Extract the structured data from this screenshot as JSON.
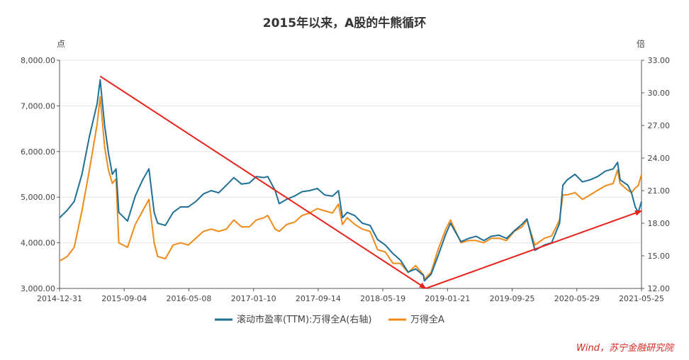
{
  "chart_data": {
    "type": "line",
    "title": "2015年以来，A股的牛熊循环",
    "y_left_unit": "点",
    "y_right_unit": "倍",
    "x_tick_labels": [
      "2014-12-31",
      "2015-09-04",
      "2016-05-08",
      "2017-01-10",
      "2017-09-14",
      "2018-05-19",
      "2019-01-21",
      "2019-09-25",
      "2020-05-29",
      "2021-05-25"
    ],
    "y_left_ticks": [
      "3,000.00",
      "4,000.00",
      "5,000.00",
      "6,000.00",
      "7,000.00",
      "8,000.00"
    ],
    "y_right_ticks": [
      "12.00",
      "15.00",
      "18.00",
      "21.00",
      "24.00",
      "27.00",
      "30.00",
      "33.00"
    ],
    "y_left_range": [
      3000,
      8000
    ],
    "y_right_range": [
      12,
      33
    ],
    "x_range": [
      "2014-12-31",
      "2021-05-25"
    ],
    "series": [
      {
        "name": "滚动市盈率(TTM):万得全A(右轴)",
        "axis": "right",
        "color": "#1f6f96",
        "points": [
          [
            "2014-12-31",
            18.5
          ],
          [
            "2015-01-31",
            19.2
          ],
          [
            "2015-02-28",
            20.0
          ],
          [
            "2015-03-31",
            22.5
          ],
          [
            "2015-04-30",
            26.0
          ],
          [
            "2015-05-31",
            29.0
          ],
          [
            "2015-06-12",
            31.2
          ],
          [
            "2015-06-30",
            27.0
          ],
          [
            "2015-07-15",
            24.5
          ],
          [
            "2015-07-31",
            22.5
          ],
          [
            "2015-08-15",
            23.0
          ],
          [
            "2015-08-26",
            19.0
          ],
          [
            "2015-09-30",
            18.2
          ],
          [
            "2015-10-31",
            20.5
          ],
          [
            "2015-11-30",
            22.0
          ],
          [
            "2015-12-25",
            23.0
          ],
          [
            "2016-01-15",
            19.0
          ],
          [
            "2016-01-29",
            18.0
          ],
          [
            "2016-02-29",
            17.8
          ],
          [
            "2016-03-31",
            19.0
          ],
          [
            "2016-04-30",
            19.5
          ],
          [
            "2016-05-31",
            19.5
          ],
          [
            "2016-06-30",
            20.0
          ],
          [
            "2016-07-31",
            20.7
          ],
          [
            "2016-08-31",
            21.0
          ],
          [
            "2016-09-30",
            20.8
          ],
          [
            "2016-10-31",
            21.5
          ],
          [
            "2016-11-30",
            22.2
          ],
          [
            "2016-12-31",
            21.6
          ],
          [
            "2017-01-31",
            21.7
          ],
          [
            "2017-02-28",
            22.3
          ],
          [
            "2017-03-31",
            22.2
          ],
          [
            "2017-04-15",
            22.3
          ],
          [
            "2017-05-15",
            21.0
          ],
          [
            "2017-05-31",
            19.8
          ],
          [
            "2017-06-30",
            20.2
          ],
          [
            "2017-07-31",
            20.5
          ],
          [
            "2017-08-31",
            20.9
          ],
          [
            "2017-09-30",
            21.0
          ],
          [
            "2017-10-31",
            21.2
          ],
          [
            "2017-11-30",
            20.6
          ],
          [
            "2017-12-31",
            20.5
          ],
          [
            "2018-01-24",
            21.0
          ],
          [
            "2018-02-09",
            18.5
          ],
          [
            "2018-02-28",
            19.0
          ],
          [
            "2018-03-31",
            18.7
          ],
          [
            "2018-04-30",
            18.0
          ],
          [
            "2018-05-31",
            17.8
          ],
          [
            "2018-06-30",
            16.5
          ],
          [
            "2018-07-31",
            16.0
          ],
          [
            "2018-08-31",
            15.2
          ],
          [
            "2018-09-30",
            14.6
          ],
          [
            "2018-10-31",
            13.5
          ],
          [
            "2018-11-30",
            13.8
          ],
          [
            "2018-12-31",
            13.2
          ],
          [
            "2019-01-04",
            12.7
          ],
          [
            "2019-01-31",
            13.3
          ],
          [
            "2019-02-28",
            15.0
          ],
          [
            "2019-03-31",
            17.0
          ],
          [
            "2019-04-19",
            18.0
          ],
          [
            "2019-05-31",
            16.3
          ],
          [
            "2019-06-30",
            16.6
          ],
          [
            "2019-07-31",
            16.8
          ],
          [
            "2019-08-31",
            16.4
          ],
          [
            "2019-09-30",
            16.8
          ],
          [
            "2019-10-31",
            16.9
          ],
          [
            "2019-11-30",
            16.6
          ],
          [
            "2019-12-31",
            17.3
          ],
          [
            "2020-01-31",
            17.9
          ],
          [
            "2020-02-20",
            18.4
          ],
          [
            "2020-03-23",
            15.5
          ],
          [
            "2020-04-30",
            16.0
          ],
          [
            "2020-05-29",
            16.2
          ],
          [
            "2020-06-30",
            18.0
          ],
          [
            "2020-07-13",
            21.5
          ],
          [
            "2020-07-31",
            22.0
          ],
          [
            "2020-08-31",
            22.5
          ],
          [
            "2020-09-30",
            21.8
          ],
          [
            "2020-10-31",
            22.0
          ],
          [
            "2020-11-30",
            22.3
          ],
          [
            "2020-12-31",
            22.8
          ],
          [
            "2021-01-31",
            23.0
          ],
          [
            "2021-02-18",
            23.6
          ],
          [
            "2021-02-28",
            22.0
          ],
          [
            "2021-03-31",
            21.5
          ],
          [
            "2021-04-15",
            20.8
          ],
          [
            "2021-04-30",
            19.5
          ],
          [
            "2021-05-12",
            19.0
          ],
          [
            "2021-05-25",
            20.0
          ]
        ]
      },
      {
        "name": "万得全A",
        "axis": "left",
        "color": "#f08a18",
        "points": [
          [
            "2014-12-31",
            3600
          ],
          [
            "2015-01-31",
            3700
          ],
          [
            "2015-02-28",
            3900
          ],
          [
            "2015-03-31",
            4700
          ],
          [
            "2015-04-30",
            5600
          ],
          [
            "2015-05-31",
            6600
          ],
          [
            "2015-06-12",
            7200
          ],
          [
            "2015-06-30",
            6100
          ],
          [
            "2015-07-15",
            5600
          ],
          [
            "2015-07-31",
            5300
          ],
          [
            "2015-08-15",
            5400
          ],
          [
            "2015-08-26",
            4000
          ],
          [
            "2015-09-30",
            3900
          ],
          [
            "2015-10-31",
            4400
          ],
          [
            "2015-11-30",
            4700
          ],
          [
            "2015-12-25",
            4950
          ],
          [
            "2016-01-15",
            4000
          ],
          [
            "2016-01-29",
            3700
          ],
          [
            "2016-02-29",
            3650
          ],
          [
            "2016-03-31",
            3950
          ],
          [
            "2016-04-30",
            4000
          ],
          [
            "2016-05-31",
            3950
          ],
          [
            "2016-06-30",
            4100
          ],
          [
            "2016-07-31",
            4250
          ],
          [
            "2016-08-31",
            4300
          ],
          [
            "2016-09-30",
            4250
          ],
          [
            "2016-10-31",
            4300
          ],
          [
            "2016-11-30",
            4500
          ],
          [
            "2016-12-31",
            4350
          ],
          [
            "2017-01-31",
            4350
          ],
          [
            "2017-02-28",
            4500
          ],
          [
            "2017-03-31",
            4550
          ],
          [
            "2017-04-15",
            4600
          ],
          [
            "2017-05-15",
            4300
          ],
          [
            "2017-05-31",
            4250
          ],
          [
            "2017-06-30",
            4400
          ],
          [
            "2017-07-31",
            4450
          ],
          [
            "2017-08-31",
            4600
          ],
          [
            "2017-09-30",
            4650
          ],
          [
            "2017-10-31",
            4750
          ],
          [
            "2017-11-30",
            4700
          ],
          [
            "2017-12-31",
            4650
          ],
          [
            "2018-01-24",
            4850
          ],
          [
            "2018-02-09",
            4400
          ],
          [
            "2018-02-28",
            4550
          ],
          [
            "2018-03-31",
            4400
          ],
          [
            "2018-04-30",
            4300
          ],
          [
            "2018-05-31",
            4250
          ],
          [
            "2018-06-30",
            3850
          ],
          [
            "2018-07-31",
            3800
          ],
          [
            "2018-08-31",
            3550
          ],
          [
            "2018-09-30",
            3550
          ],
          [
            "2018-10-31",
            3350
          ],
          [
            "2018-11-30",
            3500
          ],
          [
            "2018-12-31",
            3300
          ],
          [
            "2019-01-04",
            3200
          ],
          [
            "2019-01-31",
            3350
          ],
          [
            "2019-02-28",
            3850
          ],
          [
            "2019-03-31",
            4300
          ],
          [
            "2019-04-19",
            4500
          ],
          [
            "2019-05-31",
            4000
          ],
          [
            "2019-06-30",
            4050
          ],
          [
            "2019-07-31",
            4050
          ],
          [
            "2019-08-31",
            4000
          ],
          [
            "2019-09-30",
            4100
          ],
          [
            "2019-10-31",
            4100
          ],
          [
            "2019-11-30",
            4050
          ],
          [
            "2019-12-31",
            4250
          ],
          [
            "2020-01-31",
            4350
          ],
          [
            "2020-02-20",
            4500
          ],
          [
            "2020-03-23",
            3950
          ],
          [
            "2020-04-30",
            4100
          ],
          [
            "2020-05-29",
            4150
          ],
          [
            "2020-06-30",
            4500
          ],
          [
            "2020-07-13",
            5050
          ],
          [
            "2020-07-31",
            5050
          ],
          [
            "2020-08-31",
            5100
          ],
          [
            "2020-09-30",
            4950
          ],
          [
            "2020-10-31",
            5050
          ],
          [
            "2020-11-30",
            5150
          ],
          [
            "2020-12-31",
            5250
          ],
          [
            "2021-01-31",
            5300
          ],
          [
            "2021-02-18",
            5600
          ],
          [
            "2021-02-28",
            5300
          ],
          [
            "2021-03-31",
            5150
          ],
          [
            "2021-04-15",
            5100
          ],
          [
            "2021-04-30",
            5200
          ],
          [
            "2021-05-12",
            5250
          ],
          [
            "2021-05-25",
            5500
          ]
        ]
      }
    ],
    "annotations": [
      {
        "type": "arrow",
        "color": "#e8221b",
        "from": [
          "2015-06-12",
          7650
        ],
        "to": [
          "2019-01-10",
          3000
        ]
      },
      {
        "type": "arrow",
        "color": "#e8221b",
        "from": [
          "2019-01-10",
          3000
        ],
        "to": [
          "2021-05-25",
          4700
        ]
      }
    ],
    "grid": "horizontal",
    "legend_position": "bottom"
  },
  "source_note": "Wind，苏宁金融研究院"
}
